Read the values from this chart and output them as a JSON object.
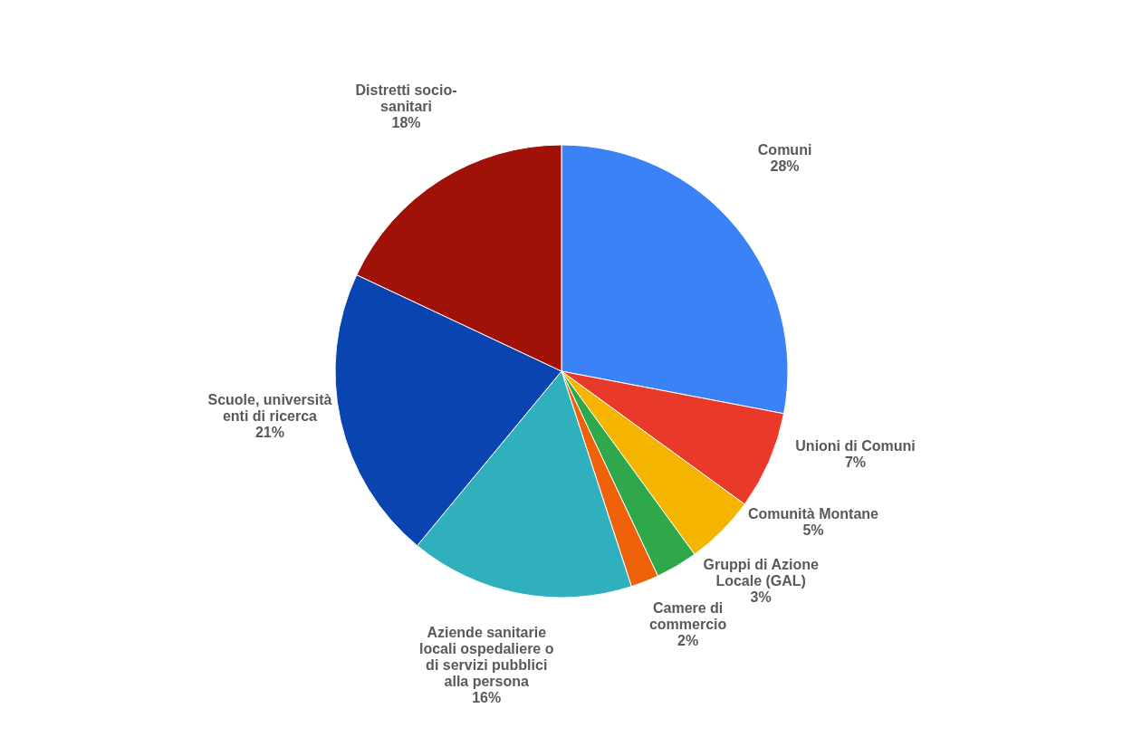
{
  "chart_data": {
    "type": "pie",
    "categories": [
      "Comuni",
      "Unioni di Comuni",
      "Comunità Montane",
      "Gruppi di Azione Locale (GAL)",
      "Camere di commercio",
      "Aziende sanitarie locali  ospedaliere o di servizi pubblici alla persona",
      "Scuole, università enti di ricerca",
      "Distretti socio-sanitari"
    ],
    "values": [
      28,
      7,
      5,
      3,
      2,
      16,
      21,
      18
    ],
    "value_labels": [
      "28%",
      "7%",
      "5%",
      "3%",
      "2%",
      "16%",
      "21%",
      "18%"
    ],
    "colors": [
      "#3b82f6",
      "#e8392b",
      "#f5b400",
      "#2ea84a",
      "#f0620a",
      "#30b0bc",
      "#0a44b0",
      "#a01208"
    ]
  }
}
